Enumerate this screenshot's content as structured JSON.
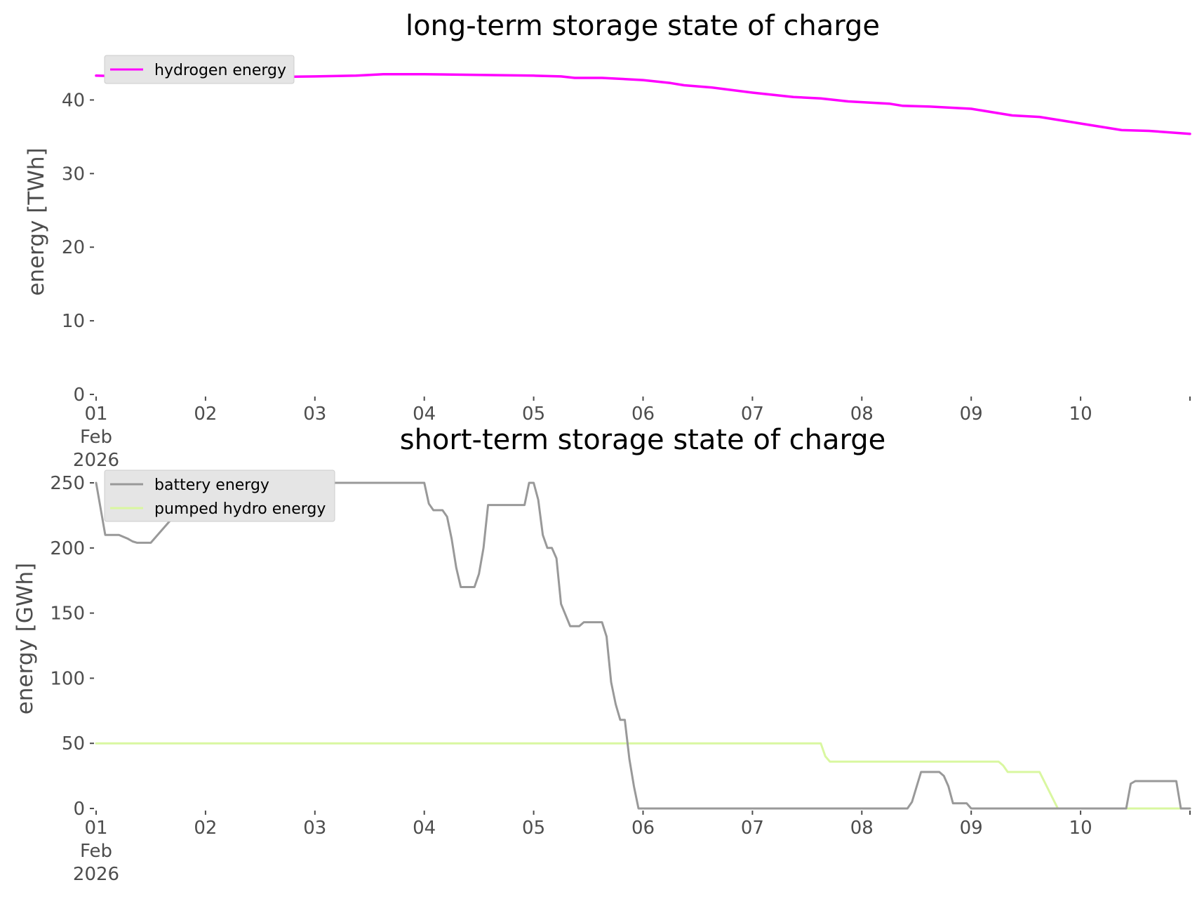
{
  "chart_data": [
    {
      "type": "line",
      "title": "long-term storage state of charge",
      "xlabel": "",
      "ylabel": "energy [TWh]",
      "ylim": [
        0,
        45
      ],
      "yticks": [
        0,
        10,
        20,
        30,
        40
      ],
      "xlim": [
        "2026-02-01",
        "2026-02-11"
      ],
      "xtick_labels": [
        "01\nFeb\n2026",
        "02",
        "03",
        "04",
        "05",
        "06",
        "07",
        "08",
        "09",
        "10"
      ],
      "grid": false,
      "legend": "upper-left",
      "series": [
        {
          "name": "hydrogen energy",
          "color": "#ff00ff",
          "x": [
            "2026-02-01 00:00",
            "2026-02-01 12:00",
            "2026-02-02 00:00",
            "2026-02-02 12:00",
            "2026-02-03 00:00",
            "2026-02-03 09:00",
            "2026-02-03 15:00",
            "2026-02-04 00:00",
            "2026-02-04 12:00",
            "2026-02-05 00:00",
            "2026-02-05 06:00",
            "2026-02-05 09:00",
            "2026-02-05 15:00",
            "2026-02-05 18:00",
            "2026-02-06 00:00",
            "2026-02-06 06:00",
            "2026-02-06 09:00",
            "2026-02-06 15:00",
            "2026-02-07 00:00",
            "2026-02-07 09:00",
            "2026-02-07 15:00",
            "2026-02-07 21:00",
            "2026-02-08 06:00",
            "2026-02-08 09:00",
            "2026-02-08 15:00",
            "2026-02-09 00:00",
            "2026-02-09 09:00",
            "2026-02-09 15:00",
            "2026-02-10 00:00",
            "2026-02-10 09:00",
            "2026-02-10 15:00",
            "2026-02-11 00:00"
          ],
          "y": [
            43.3,
            43.1,
            43.0,
            43.1,
            43.2,
            43.3,
            43.5,
            43.5,
            43.4,
            43.3,
            43.2,
            43.0,
            43.0,
            42.9,
            42.7,
            42.3,
            42.0,
            41.7,
            41.0,
            40.4,
            40.2,
            39.8,
            39.5,
            39.2,
            39.1,
            38.8,
            37.9,
            37.7,
            36.8,
            35.9,
            35.8,
            35.4
          ]
        }
      ]
    },
    {
      "type": "line",
      "title": "short-term storage state of charge",
      "xlabel": "",
      "ylabel": "energy [GWh]",
      "ylim": [
        0,
        250
      ],
      "yticks": [
        0,
        50,
        100,
        150,
        200,
        250
      ],
      "xlim": [
        "2026-02-01",
        "2026-02-11"
      ],
      "xtick_labels": [
        "01\nFeb\n2026",
        "02",
        "03",
        "04",
        "05",
        "06",
        "07",
        "08",
        "09",
        "10"
      ],
      "grid": false,
      "legend": "upper-left",
      "series": [
        {
          "name": "battery energy",
          "color": "#999999",
          "x": [
            "2026-02-01 00:00",
            "2026-02-01 02:00",
            "2026-02-01 05:00",
            "2026-02-01 07:00",
            "2026-02-01 08:00",
            "2026-02-01 09:00",
            "2026-02-01 10:00",
            "2026-02-01 11:00",
            "2026-02-01 12:00",
            "2026-02-01 14:00",
            "2026-02-01 17:00",
            "2026-02-01 20:00",
            "2026-02-01 22:00",
            "2026-02-02 00:00",
            "2026-02-04 00:00",
            "2026-02-04 01:00",
            "2026-02-04 02:00",
            "2026-02-04 04:00",
            "2026-02-04 05:00",
            "2026-02-04 06:00",
            "2026-02-04 07:00",
            "2026-02-04 08:00",
            "2026-02-04 11:00",
            "2026-02-04 12:00",
            "2026-02-04 13:00",
            "2026-02-04 14:00",
            "2026-02-04 22:00",
            "2026-02-04 23:00",
            "2026-02-05 00:00",
            "2026-02-05 01:00",
            "2026-02-05 02:00",
            "2026-02-05 03:00",
            "2026-02-05 04:00",
            "2026-02-05 05:00",
            "2026-02-05 06:00",
            "2026-02-05 08:00",
            "2026-02-05 10:00",
            "2026-02-05 11:00",
            "2026-02-05 15:00",
            "2026-02-05 16:00",
            "2026-02-05 17:00",
            "2026-02-05 18:00",
            "2026-02-05 19:00",
            "2026-02-05 20:00",
            "2026-02-05 21:00",
            "2026-02-05 22:00",
            "2026-02-05 23:00",
            "2026-02-06 00:00",
            "2026-02-08 10:00",
            "2026-02-08 11:00",
            "2026-02-08 13:00",
            "2026-02-08 17:00",
            "2026-02-08 18:00",
            "2026-02-08 19:00",
            "2026-02-08 20:00",
            "2026-02-08 23:00",
            "2026-02-09 00:00",
            "2026-02-10 10:00",
            "2026-02-10 11:00",
            "2026-02-10 12:00",
            "2026-02-10 21:00",
            "2026-02-10 22:00",
            "2026-02-11 00:00"
          ],
          "y": [
            250,
            210,
            210,
            207,
            205,
            204,
            204,
            204,
            204,
            212,
            224,
            236,
            243,
            250,
            250,
            234,
            229,
            229,
            224,
            207,
            185,
            170,
            170,
            180,
            200,
            233,
            233,
            250,
            250,
            237,
            210,
            200,
            200,
            192,
            157,
            140,
            140,
            143,
            143,
            132,
            97,
            80,
            68,
            68,
            38,
            17,
            0,
            0,
            0,
            5,
            28,
            28,
            25,
            17,
            4,
            4,
            0,
            0,
            19,
            21,
            21,
            0,
            0
          ]
        },
        {
          "name": "pumped hydro energy",
          "color": "#d9f7a0",
          "x": [
            "2026-02-01 00:00",
            "2026-02-07 15:00",
            "2026-02-07 16:00",
            "2026-02-07 17:00",
            "2026-02-09 06:00",
            "2026-02-09 07:00",
            "2026-02-09 08:00",
            "2026-02-09 15:00",
            "2026-02-09 16:00",
            "2026-02-09 19:00",
            "2026-02-11 00:00"
          ],
          "y": [
            50,
            50,
            40,
            36,
            36,
            33,
            28,
            28,
            21,
            0,
            0
          ]
        }
      ]
    }
  ]
}
